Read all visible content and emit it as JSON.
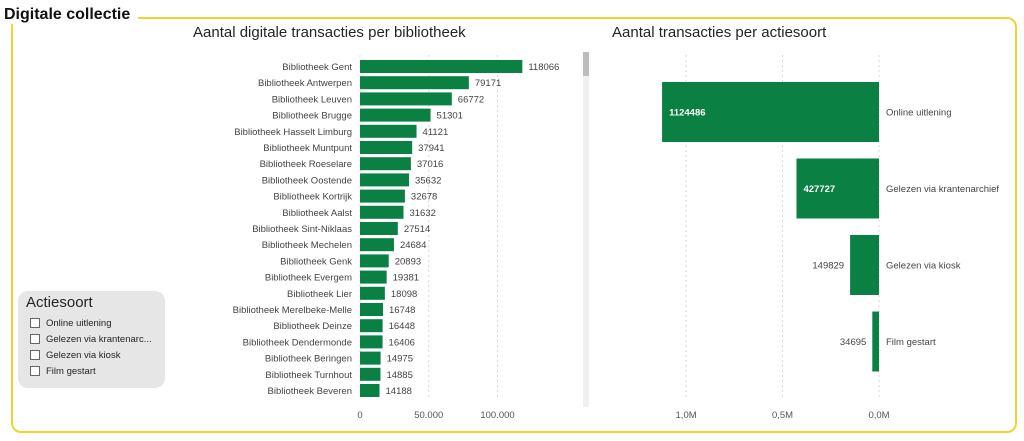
{
  "section_title": "Digitale collectie",
  "colors": {
    "bar": "#0a8043",
    "frame": "#f2d22e",
    "grid": "#d9d9d9"
  },
  "slicer": {
    "title": "Actiesoort",
    "items": [
      "Online uitlening",
      "Gelezen via krantenarc...",
      "Gelezen via kiosk",
      "Film gestart"
    ]
  },
  "chart_data": [
    {
      "type": "bar",
      "orientation": "horizontal",
      "title": "Aantal digitale transacties per bibliotheek",
      "categories": [
        "Bibliotheek Gent",
        "Bibliotheek Antwerpen",
        "Bibliotheek Leuven",
        "Bibliotheek Brugge",
        "Bibliotheek Hasselt Limburg",
        "Bibliotheek Muntpunt",
        "Bibliotheek Roeselare",
        "Bibliotheek Oostende",
        "Bibliotheek Kortrijk",
        "Bibliotheek Aalst",
        "Bibliotheek Sint-Niklaas",
        "Bibliotheek Mechelen",
        "Bibliotheek Genk",
        "Bibliotheek Evergem",
        "Bibliotheek Lier",
        "Bibliotheek Merelbeke-Melle",
        "Bibliotheek Deinze",
        "Bibliotheek Dendermonde",
        "Bibliotheek Beringen",
        "Bibliotheek Turnhout",
        "Bibliotheek Beveren"
      ],
      "values": [
        118066,
        79171,
        66772,
        51301,
        41121,
        37941,
        37016,
        35632,
        32678,
        31632,
        27514,
        24684,
        20893,
        19381,
        18098,
        16748,
        16448,
        16406,
        14975,
        14885,
        14188
      ],
      "value_labels": [
        "118066",
        "79171",
        "66772",
        "51301",
        "41121",
        "37941",
        "37016",
        "35632",
        "32678",
        "31632",
        "27514",
        "24684",
        "20893",
        "19381",
        "18098",
        "16748",
        "16448",
        "16406",
        "14975",
        "14885",
        "14188"
      ],
      "xlim": [
        0,
        160000
      ],
      "xticks": [
        0,
        50000,
        100000
      ],
      "xtick_labels": [
        "0",
        "50.000",
        "100.000"
      ]
    },
    {
      "type": "bar",
      "orientation": "horizontal-reversed",
      "title": "Aantal transacties per actiesoort",
      "categories": [
        "Online uitlening",
        "Gelezen via krantenarchief",
        "Gelezen via kiosk",
        "Film gestart"
      ],
      "values": [
        1124486,
        427727,
        149829,
        34695
      ],
      "value_labels": [
        "1124486",
        "427727",
        "149829",
        "34695"
      ],
      "xlim": [
        0,
        1130000
      ],
      "xticks": [
        1000000,
        500000,
        0
      ],
      "xtick_labels": [
        "1,0M",
        "0,5M",
        "0,0M"
      ]
    }
  ]
}
